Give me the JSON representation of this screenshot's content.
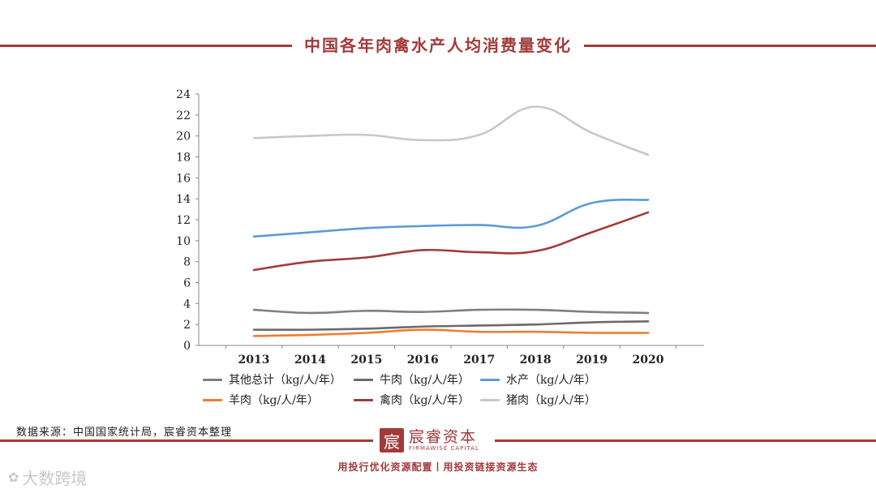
{
  "header": {
    "title": "中国各年肉禽水产人均消费量变化"
  },
  "chart_data": {
    "type": "line",
    "title": "中国各年肉禽水产人均消费量变化",
    "categories": [
      "2013",
      "2014",
      "2015",
      "2016",
      "2017",
      "2018",
      "2019",
      "2020"
    ],
    "ylim": [
      0,
      24
    ],
    "yticks": [
      "0",
      "2",
      "4",
      "6",
      "8",
      "10",
      "12",
      "14",
      "16",
      "18",
      "20",
      "22",
      "24"
    ],
    "grid": false,
    "legend_position": "bottom",
    "series": [
      {
        "name": "其他总计（kg/人/年）",
        "color": "#7f7f7f",
        "values": [
          3.4,
          3.1,
          3.3,
          3.2,
          3.4,
          3.4,
          3.2,
          3.1
        ]
      },
      {
        "name": "牛肉（kg/人/年）",
        "color": "#6b6b6b",
        "values": [
          1.5,
          1.5,
          1.6,
          1.8,
          1.9,
          2.0,
          2.2,
          2.3
        ]
      },
      {
        "name": "水产（kg/人/年）",
        "color": "#5b9bd5",
        "values": [
          10.4,
          10.8,
          11.2,
          11.4,
          11.5,
          11.4,
          13.6,
          13.9
        ]
      },
      {
        "name": "羊肉（kg/人/年）",
        "color": "#ed7d31",
        "values": [
          0.9,
          1.0,
          1.2,
          1.5,
          1.3,
          1.3,
          1.2,
          1.2
        ]
      },
      {
        "name": "禽肉（kg/人/年）",
        "color": "#a33a3a",
        "values": [
          7.2,
          8.0,
          8.4,
          9.1,
          8.9,
          9.0,
          10.8,
          12.7
        ]
      },
      {
        "name": "猪肉（kg/人/年）",
        "color": "#c8c8c8",
        "values": [
          19.8,
          20.0,
          20.1,
          19.6,
          20.1,
          22.8,
          20.3,
          18.2
        ]
      }
    ]
  },
  "footer": {
    "source": "数据来源：中国国家统计局，宸睿资本整理",
    "logo_mark": "宸",
    "logo_cn": "宸睿资本",
    "logo_en": "FIRMAWISE CAPITAL",
    "slogan": "用投行优化资源配置丨用投资链接资源生态"
  },
  "watermark": {
    "mark": "✿",
    "text": "大数跨境"
  }
}
